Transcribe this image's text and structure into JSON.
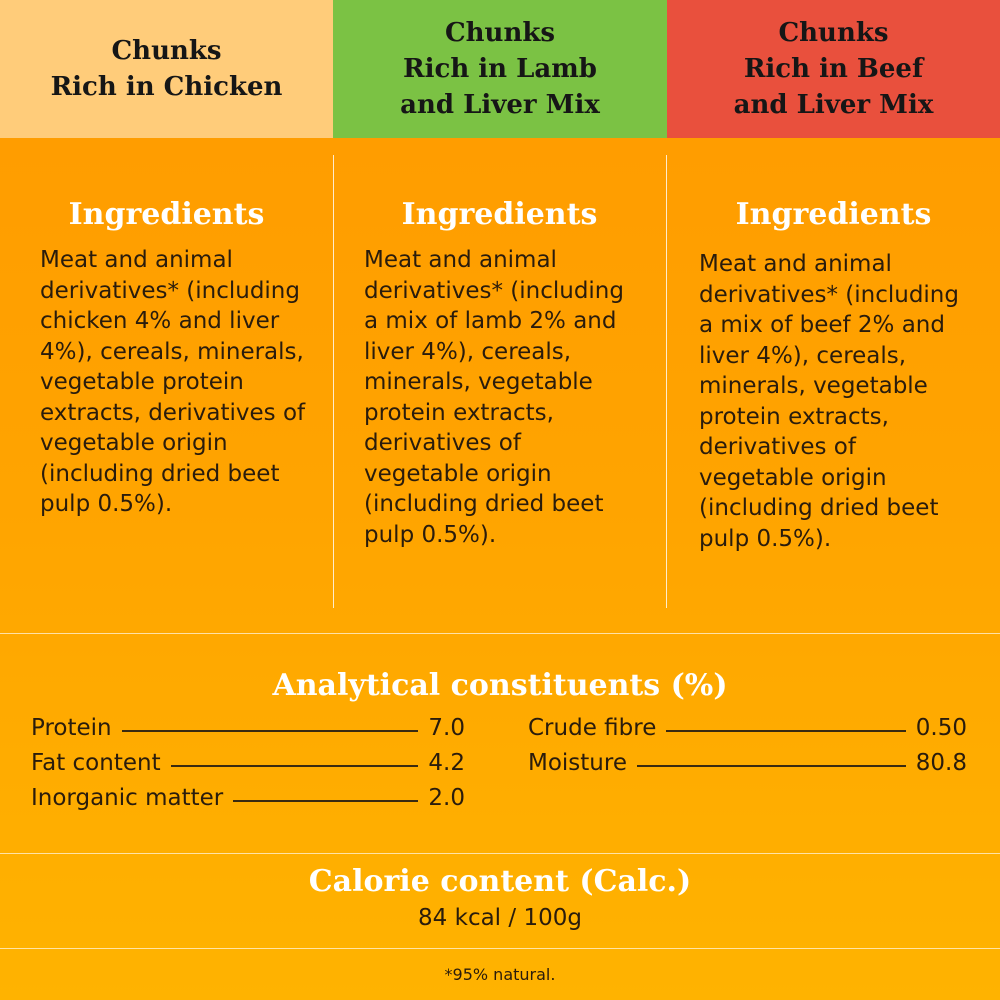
{
  "columns": [
    {
      "title": "Chunks\nRich in Chicken",
      "ingredients_heading": "Ingredients",
      "ingredients": "Meat and animal derivatives* (including chicken 4% and liver 4%), cereals, minerals, vegetable protein extracts, derivatives of vegetable origin (including dried beet pulp 0.5%).",
      "color": "#ffcc7a"
    },
    {
      "title": "Chunks\nRich in Lamb\nand Liver Mix",
      "ingredients_heading": "Ingredients",
      "ingredients": "Meat and animal derivatives* (including a mix of lamb 2% and liver 4%), cereals, minerals, vegetable protein extracts, derivatives of vegetable origin (including dried beet pulp 0.5%).",
      "color": "#7bc244"
    },
    {
      "title": "Chunks\nRich in Beef\nand Liver Mix",
      "ingredients_heading": "Ingredients",
      "ingredients": "Meat and animal derivatives* (including a mix of beef 2% and liver 4%), cereals, minerals, vegetable protein extracts, derivatives of vegetable origin (including dried beet pulp 0.5%).",
      "color": "#e9503d"
    }
  ],
  "analytical": {
    "title": "Analytical constituents (%)",
    "left": [
      {
        "label": "Protein",
        "value": "7.0"
      },
      {
        "label": "Fat content",
        "value": "4.2"
      },
      {
        "label": "Inorganic matter",
        "value": "2.0"
      }
    ],
    "right": [
      {
        "label": "Crude fibre",
        "value": "0.50"
      },
      {
        "label": "Moisture",
        "value": "80.8"
      }
    ]
  },
  "calorie": {
    "title": "Calorie content (Calc.)",
    "value": "84 kcal / 100g"
  },
  "footnote": "*95% natural.",
  "colors": {
    "background": "#ffa400",
    "chicken": "#ffcc7a",
    "lamb": "#7bc244",
    "beef": "#e9503d",
    "heading_text": "#ffffff",
    "body_text": "#2a1c0c"
  }
}
